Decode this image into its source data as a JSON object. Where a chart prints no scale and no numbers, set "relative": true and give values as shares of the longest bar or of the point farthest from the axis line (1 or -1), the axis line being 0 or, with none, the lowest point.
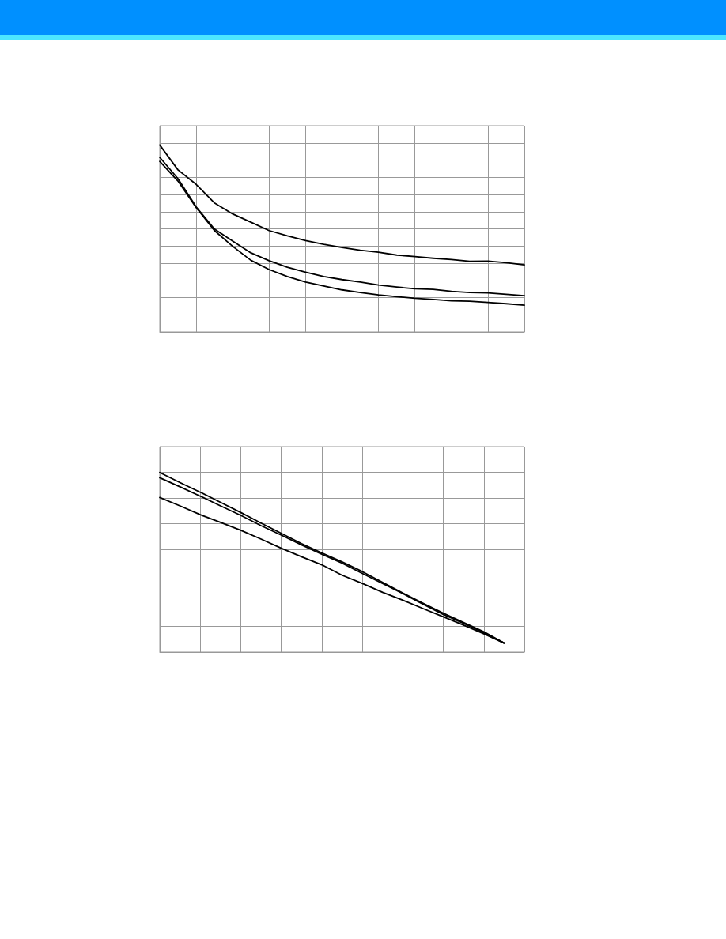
{
  "chart_data": [
    {
      "type": "line",
      "relative": true,
      "grid": true,
      "categories": [
        null,
        null,
        null,
        null,
        null,
        null,
        null,
        null,
        null,
        null,
        null,
        null,
        null,
        null,
        null,
        null,
        null,
        null,
        null,
        null,
        null
      ],
      "series": [
        {
          "color": "#000000",
          "values": [
            1,
            0.867,
            0.789,
            0.69,
            0.631,
            0.587,
            0.542,
            0.514,
            0.489,
            0.469,
            0.452,
            0.437,
            0.426,
            0.411,
            0.403,
            0.394,
            0.387,
            0.378,
            0.379,
            0.37,
            0.359
          ]
        },
        {
          "color": "#000000",
          "values": [
            0.934,
            0.82,
            0.669,
            0.55,
            0.486,
            0.423,
            0.381,
            0.346,
            0.32,
            0.296,
            0.28,
            0.267,
            0.251,
            0.24,
            0.231,
            0.228,
            0.217,
            0.211,
            0.209,
            0.201,
            0.194
          ]
        },
        {
          "color": "#000000",
          "values": [
            0.912,
            0.807,
            0.665,
            0.542,
            0.458,
            0.383,
            0.334,
            0.296,
            0.267,
            0.246,
            0.225,
            0.211,
            0.198,
            0.189,
            0.18,
            0.174,
            0.166,
            0.164,
            0.158,
            0.151,
            0.143
          ]
        }
      ]
    },
    {
      "type": "line",
      "relative": true,
      "grid": true,
      "categories": [
        null,
        null,
        null,
        null,
        null,
        null,
        null,
        null,
        null,
        null,
        null,
        null,
        null,
        null,
        null,
        null,
        null,
        null,
        null
      ],
      "series": [
        {
          "color": "#000000",
          "values": [
            1,
            0.944,
            0.89,
            0.834,
            0.777,
            0.718,
            0.661,
            0.604,
            0.552,
            0.502,
            0.448,
            0.388,
            0.329,
            0.272,
            0.216,
            0.165,
            0.113,
            0.05,
            null
          ]
        },
        {
          "color": "#000000",
          "values": [
            0.971,
            0.92,
            0.868,
            0.814,
            0.761,
            0.704,
            0.651,
            0.597,
            0.545,
            0.495,
            0.438,
            0.382,
            0.326,
            0.266,
            0.209,
            0.16,
            0.107,
            0.05,
            null
          ]
        },
        {
          "color": "#000000",
          "values": [
            0.861,
            0.814,
            0.765,
            0.722,
            0.678,
            0.629,
            0.578,
            0.531,
            0.486,
            0.428,
            0.382,
            0.333,
            0.289,
            0.242,
            0.196,
            0.15,
            0.102,
            0.05,
            null
          ]
        }
      ]
    }
  ]
}
